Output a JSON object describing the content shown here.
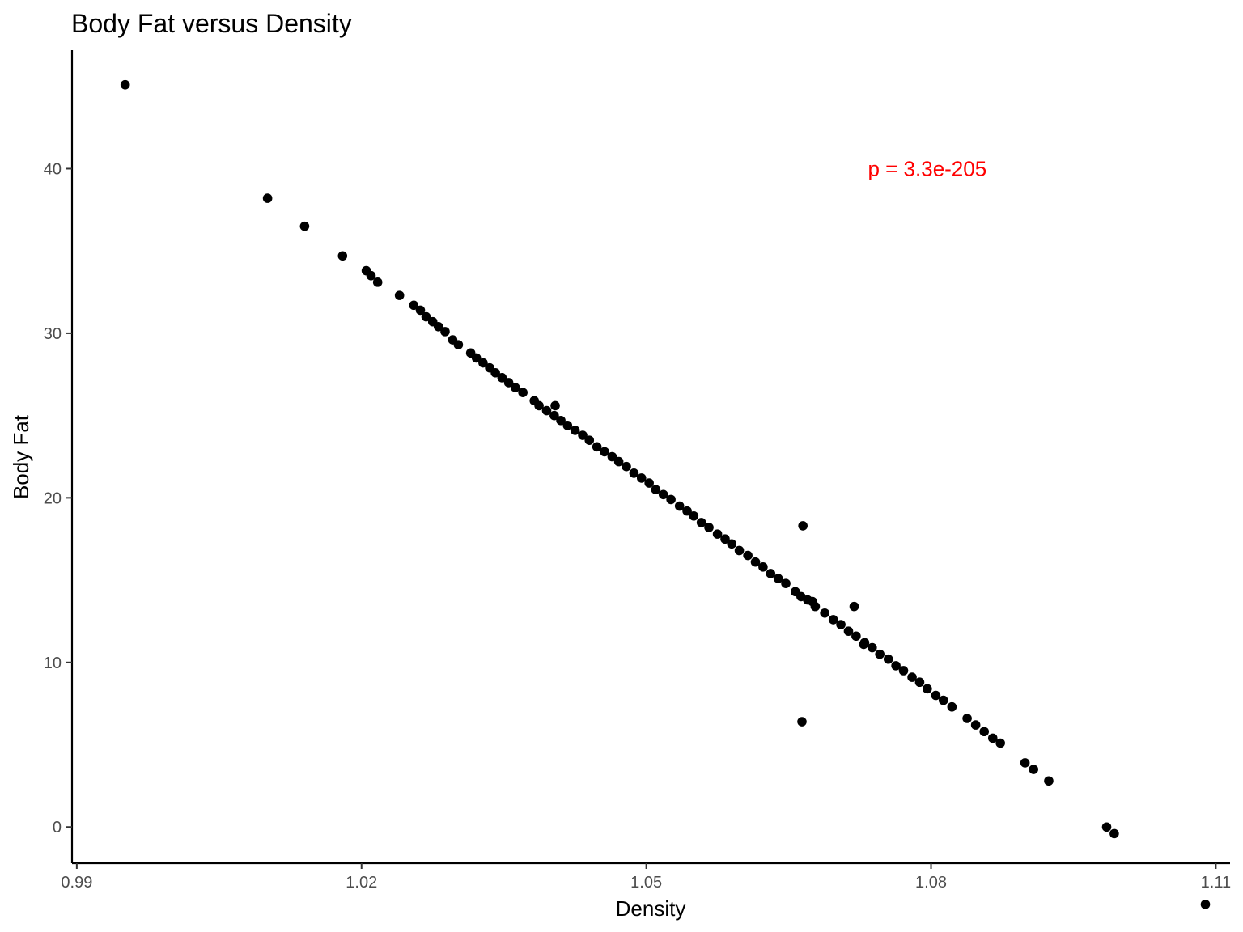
{
  "chart_data": {
    "type": "scatter",
    "title": "Body Fat versus Density",
    "xlabel": "Density",
    "ylabel": "Body Fat",
    "xlim": [
      0.9895,
      1.1115
    ],
    "ylim": [
      -2.2,
      47.2
    ],
    "x_ticks": [
      0.99,
      1.02,
      1.05,
      1.08,
      1.11
    ],
    "x_tick_labels": [
      "0.99",
      "1.02",
      "1.05",
      "1.08",
      "1.11"
    ],
    "y_ticks": [
      0,
      10,
      20,
      30,
      40
    ],
    "y_tick_labels": [
      "0",
      "10",
      "20",
      "30",
      "40"
    ],
    "grid": false,
    "legend": "none",
    "point_color": "#000000",
    "annotation": {
      "text": "p =  3.3e-205",
      "x": 1.0796,
      "y": 40,
      "color": "#ff0000"
    },
    "series": [
      {
        "x": [
          0.9951,
          1.0101,
          1.014,
          1.018,
          1.0205,
          1.021,
          1.0217,
          1.024,
          1.0255,
          1.0262,
          1.0268,
          1.0275,
          1.0281,
          1.0288,
          1.0296,
          1.0302,
          1.0315,
          1.0321,
          1.0328,
          1.0335,
          1.0341,
          1.0348,
          1.0355,
          1.0362,
          1.037,
          1.0382,
          1.0387,
          1.0395,
          1.0403,
          1.041,
          1.0417,
          1.0425,
          1.0433,
          1.044,
          1.0448,
          1.0456,
          1.0464,
          1.0471,
          1.0479,
          1.0487,
          1.0495,
          1.0503,
          1.051,
          1.0518,
          1.0526,
          1.0535,
          1.0543,
          1.055,
          1.0558,
          1.0566,
          1.0575,
          1.0583,
          1.059,
          1.0598,
          1.0607,
          1.0615,
          1.0623,
          1.0631,
          1.0639,
          1.0647,
          1.0657,
          1.0663,
          1.067,
          1.0678,
          1.0688,
          1.0697,
          1.0705,
          1.0713,
          1.0721,
          1.073,
          1.0738,
          1.0746,
          1.0755,
          1.0763,
          1.0771,
          1.078,
          1.0788,
          1.0796,
          1.0805,
          1.0813,
          1.0822,
          1.0838,
          1.0847,
          1.0856,
          1.0865,
          1.0873,
          1.0899,
          1.0908,
          1.0924,
          1.0985,
          1.0993,
          1.1089,
          1.0665,
          1.0664,
          1.0719,
          1.0729,
          1.0675,
          1.0404
        ],
        "y": [
          45.1,
          38.2,
          36.5,
          34.7,
          33.8,
          33.5,
          33.1,
          32.3,
          31.7,
          31.4,
          31.0,
          30.7,
          30.4,
          30.1,
          29.6,
          29.3,
          28.8,
          28.5,
          28.2,
          27.9,
          27.6,
          27.3,
          27.0,
          26.7,
          26.4,
          25.9,
          25.6,
          25.3,
          25.0,
          24.7,
          24.4,
          24.1,
          23.8,
          23.5,
          23.1,
          22.8,
          22.5,
          22.2,
          21.9,
          21.5,
          21.2,
          20.9,
          20.5,
          20.2,
          19.9,
          19.5,
          19.2,
          18.9,
          18.5,
          18.2,
          17.8,
          17.5,
          17.2,
          16.8,
          16.5,
          16.1,
          15.8,
          15.4,
          15.1,
          14.8,
          14.3,
          14.0,
          13.8,
          13.4,
          13.0,
          12.6,
          12.3,
          11.9,
          11.6,
          11.2,
          10.9,
          10.5,
          10.2,
          9.8,
          9.5,
          9.1,
          8.8,
          8.4,
          8.0,
          7.7,
          7.3,
          6.6,
          6.2,
          5.8,
          5.4,
          5.1,
          3.9,
          3.5,
          2.8,
          0.0,
          -0.4,
          -4.7,
          18.3,
          6.4,
          13.4,
          11.1,
          13.7,
          25.6
        ]
      }
    ]
  }
}
